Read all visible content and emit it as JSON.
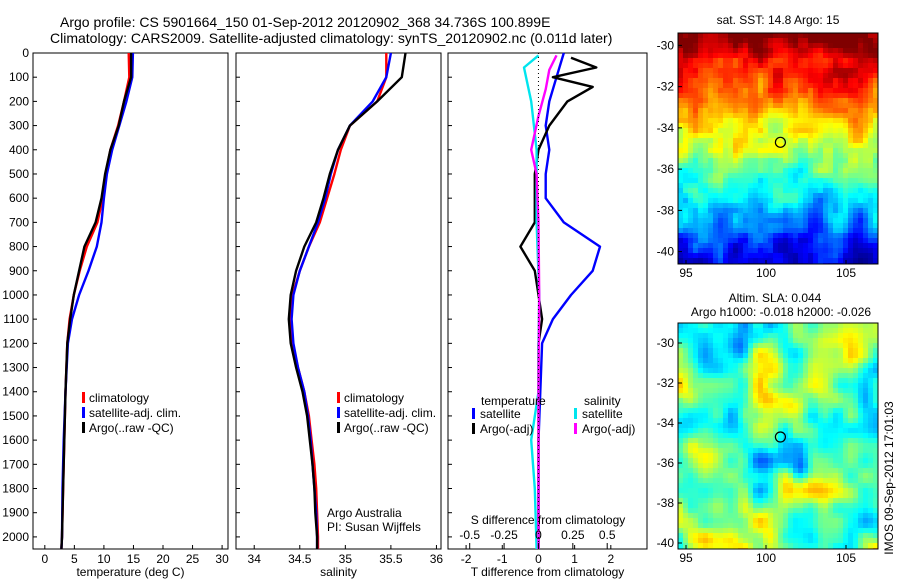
{
  "header": {
    "line1": "Argo profile: CS 5901664_150 01-Sep-2012 20120902_368 34.736S 100.899E",
    "line2": "Climatology: CARS2009. Satellite-adjusted climatology: synTS_20120902.nc (0.011d later)"
  },
  "colors": {
    "climatology": "#ff0000",
    "satellite": "#0000ff",
    "argo": "#000000",
    "satellite_s": "#00e5ee",
    "argo_s": "#ff00ff"
  },
  "chart_data": [
    {
      "type": "line",
      "id": "temperature",
      "xlabel": "temperature (deg C)",
      "xlim": [
        -2,
        31
      ],
      "xticks": [
        0,
        5,
        10,
        15,
        20,
        25,
        30
      ],
      "ylim": [
        2050,
        0
      ],
      "yticks": [
        0,
        100,
        200,
        300,
        400,
        500,
        600,
        700,
        800,
        900,
        1000,
        1100,
        1200,
        1300,
        1400,
        1500,
        1600,
        1700,
        1800,
        1900,
        2000
      ],
      "legend": [
        "climatology",
        "satellite-adj. clim.",
        "Argo(..raw -QC)"
      ],
      "series": [
        {
          "name": "climatology",
          "color": "#ff0000",
          "points": [
            [
              14.2,
              0
            ],
            [
              14.3,
              100
            ],
            [
              13.4,
              200
            ],
            [
              12.4,
              300
            ],
            [
              11.1,
              400
            ],
            [
              10.3,
              500
            ],
            [
              9.8,
              600
            ],
            [
              8.9,
              700
            ],
            [
              7.1,
              800
            ],
            [
              5.9,
              900
            ],
            [
              4.9,
              1000
            ],
            [
              4.2,
              1100
            ],
            [
              3.8,
              1200
            ],
            [
              3.5,
              1400
            ],
            [
              3.3,
              1600
            ],
            [
              3.1,
              1800
            ],
            [
              2.9,
              2000
            ],
            [
              2.8,
              2050
            ]
          ]
        },
        {
          "name": "satellite-adj. clim.",
          "color": "#0000ff",
          "points": [
            [
              14.9,
              0
            ],
            [
              14.8,
              100
            ],
            [
              13.8,
              200
            ],
            [
              12.6,
              300
            ],
            [
              11.4,
              400
            ],
            [
              10.5,
              500
            ],
            [
              10.0,
              600
            ],
            [
              9.6,
              700
            ],
            [
              8.8,
              800
            ],
            [
              7.4,
              900
            ],
            [
              5.8,
              1000
            ],
            [
              4.6,
              1100
            ],
            [
              3.9,
              1200
            ],
            [
              3.5,
              1400
            ],
            [
              3.2,
              1600
            ],
            [
              3.0,
              1800
            ],
            [
              2.9,
              2000
            ],
            [
              2.8,
              2050
            ]
          ]
        },
        {
          "name": "Argo(..raw -QC)",
          "color": "#000000",
          "points": [
            [
              14.6,
              0
            ],
            [
              14.6,
              100
            ],
            [
              13.4,
              200
            ],
            [
              12.5,
              300
            ],
            [
              11.1,
              400
            ],
            [
              10.2,
              500
            ],
            [
              9.6,
              600
            ],
            [
              8.6,
              700
            ],
            [
              6.7,
              800
            ],
            [
              5.8,
              900
            ],
            [
              4.9,
              1000
            ],
            [
              4.3,
              1100
            ],
            [
              3.8,
              1200
            ],
            [
              3.5,
              1400
            ],
            [
              3.3,
              1600
            ],
            [
              3.1,
              1800
            ],
            [
              2.9,
              2000
            ],
            [
              2.8,
              2050
            ]
          ]
        }
      ]
    },
    {
      "type": "line",
      "id": "salinity",
      "xlabel": "salinity",
      "xlim": [
        33.8,
        36.05
      ],
      "xticks": [
        34,
        34.5,
        35,
        35.5,
        36
      ],
      "ylim": [
        2050,
        0
      ],
      "legend": [
        "climatology",
        "satellite-adj. clim.",
        "Argo(..raw -QC)"
      ],
      "annotation": [
        "Argo Australia",
        "PI: Susan Wijffels"
      ],
      "series": [
        {
          "name": "climatology",
          "color": "#ff0000",
          "points": [
            [
              35.45,
              0
            ],
            [
              35.45,
              100
            ],
            [
              35.35,
              200
            ],
            [
              35.05,
              300
            ],
            [
              34.95,
              400
            ],
            [
              34.88,
              500
            ],
            [
              34.8,
              600
            ],
            [
              34.72,
              700
            ],
            [
              34.6,
              800
            ],
            [
              34.5,
              900
            ],
            [
              34.42,
              1000
            ],
            [
              34.4,
              1100
            ],
            [
              34.42,
              1200
            ],
            [
              34.48,
              1300
            ],
            [
              34.55,
              1400
            ],
            [
              34.6,
              1500
            ],
            [
              34.63,
              1600
            ],
            [
              34.66,
              1700
            ],
            [
              34.68,
              1800
            ],
            [
              34.69,
              1900
            ],
            [
              34.7,
              2000
            ],
            [
              34.7,
              2050
            ]
          ]
        },
        {
          "name": "satellite-adj. clim.",
          "color": "#0000ff",
          "points": [
            [
              35.5,
              0
            ],
            [
              35.45,
              100
            ],
            [
              35.3,
              200
            ],
            [
              35.05,
              300
            ],
            [
              34.92,
              400
            ],
            [
              34.84,
              500
            ],
            [
              34.78,
              600
            ],
            [
              34.7,
              700
            ],
            [
              34.6,
              800
            ],
            [
              34.5,
              900
            ],
            [
              34.43,
              1000
            ],
            [
              34.41,
              1100
            ],
            [
              34.43,
              1200
            ],
            [
              34.48,
              1300
            ],
            [
              34.55,
              1400
            ],
            [
              34.59,
              1500
            ],
            [
              34.62,
              1600
            ],
            [
              34.64,
              1700
            ],
            [
              34.66,
              1800
            ],
            [
              34.68,
              1900
            ],
            [
              34.69,
              2000
            ],
            [
              34.69,
              2050
            ]
          ]
        },
        {
          "name": "Argo(..raw -QC)",
          "color": "#000000",
          "points": [
            [
              35.66,
              0
            ],
            [
              35.62,
              100
            ],
            [
              35.35,
              200
            ],
            [
              35.05,
              300
            ],
            [
              34.92,
              400
            ],
            [
              34.83,
              500
            ],
            [
              34.76,
              600
            ],
            [
              34.68,
              700
            ],
            [
              34.55,
              800
            ],
            [
              34.46,
              900
            ],
            [
              34.4,
              1000
            ],
            [
              34.38,
              1100
            ],
            [
              34.4,
              1200
            ],
            [
              34.46,
              1300
            ],
            [
              34.53,
              1400
            ],
            [
              34.58,
              1500
            ],
            [
              34.61,
              1600
            ],
            [
              34.64,
              1700
            ],
            [
              34.66,
              1800
            ],
            [
              34.67,
              1900
            ],
            [
              34.69,
              2000
            ],
            [
              34.69,
              2050
            ]
          ]
        }
      ]
    },
    {
      "type": "line",
      "id": "difference",
      "xlabel": "T difference from climatology",
      "xlabel2": "S difference from climatology",
      "xlim": [
        -2.5,
        3
      ],
      "xticks": [
        -2,
        -1,
        0,
        1,
        2
      ],
      "sticks": [
        [
          -0.5,
          "-0.5"
        ],
        [
          -0.25,
          "-0.25"
        ],
        [
          0,
          "0"
        ],
        [
          0.25,
          "0.25"
        ],
        [
          0.5,
          "0.5"
        ]
      ],
      "ylim": [
        2050,
        0
      ],
      "legend_headers": [
        "temperature",
        "salinity"
      ],
      "legend": [
        "satellite",
        "Argo(-adj)",
        "satellite",
        "Argo(-adj)"
      ],
      "series": [
        {
          "name": "satellite",
          "group": "temperature",
          "color": "#0000ff",
          "points": [
            [
              0.7,
              0
            ],
            [
              0.5,
              100
            ],
            [
              0.3,
              200
            ],
            [
              0.2,
              300
            ],
            [
              0.3,
              400
            ],
            [
              0.2,
              500
            ],
            [
              0.2,
              600
            ],
            [
              0.7,
              700
            ],
            [
              1.7,
              800
            ],
            [
              1.5,
              900
            ],
            [
              0.9,
              1000
            ],
            [
              0.4,
              1100
            ],
            [
              0.1,
              1200
            ],
            [
              0.05,
              1400
            ],
            [
              0.0,
              1600
            ],
            [
              0.0,
              1800
            ],
            [
              0.0,
              2050
            ]
          ]
        },
        {
          "name": "Argo(-adj)",
          "group": "temperature",
          "color": "#000000",
          "points": [
            [
              0.9,
              20
            ],
            [
              1.6,
              60
            ],
            [
              0.4,
              100
            ],
            [
              1.5,
              140
            ],
            [
              0.8,
              200
            ],
            [
              0.3,
              300
            ],
            [
              0.0,
              400
            ],
            [
              -0.1,
              500
            ],
            [
              -0.1,
              600
            ],
            [
              -0.1,
              700
            ],
            [
              -0.5,
              800
            ],
            [
              -0.1,
              900
            ],
            [
              0.0,
              1000
            ],
            [
              0.1,
              1100
            ],
            [
              0.0,
              1200
            ],
            [
              0.0,
              1400
            ],
            [
              0.0,
              1600
            ],
            [
              0.0,
              1800
            ],
            [
              0.0,
              2050
            ]
          ]
        },
        {
          "name": "satellite",
          "group": "salinity",
          "color": "#00e5ee",
          "points": [
            [
              0.0,
              10
            ],
            [
              -0.4,
              60
            ],
            [
              -0.2,
              200
            ],
            [
              -0.05,
              400
            ],
            [
              -0.05,
              700
            ],
            [
              0.02,
              1000
            ],
            [
              0.0,
              1200
            ],
            [
              0.0,
              1400
            ],
            [
              -0.2,
              1600
            ],
            [
              -0.1,
              1800
            ],
            [
              -0.05,
              2050
            ]
          ]
        },
        {
          "name": "Argo(-adj)",
          "group": "salinity",
          "color": "#ff00ff",
          "points": [
            [
              0.5,
              10
            ],
            [
              0.3,
              70
            ],
            [
              0.2,
              150
            ],
            [
              0.0,
              260
            ],
            [
              -0.2,
              400
            ],
            [
              -0.05,
              500
            ],
            [
              0.0,
              700
            ],
            [
              0.02,
              1000
            ],
            [
              0.0,
              1400
            ],
            [
              0.0,
              1700
            ],
            [
              0.0,
              2050
            ]
          ]
        }
      ]
    },
    {
      "type": "heatmap",
      "id": "sst-map",
      "title": "sat. SST: 14.8  Argo: 15",
      "xlim": [
        94.5,
        107
      ],
      "xticks": [
        95,
        100,
        105
      ],
      "ylim": [
        -40.6,
        -29.4
      ],
      "yticks": [
        -30,
        -32,
        -34,
        -36,
        -38,
        -40
      ],
      "marker": [
        100.9,
        -34.7
      ]
    },
    {
      "type": "heatmap",
      "id": "sla-map",
      "title": "Altim. SLA: 0.044",
      "subtitle": "Argo h1000: -0.018 h2000: -0.026",
      "xlim": [
        94.5,
        107
      ],
      "xticks": [
        95,
        100,
        105
      ],
      "ylim": [
        -40.3,
        -29.0
      ],
      "yticks": [
        -30,
        -32,
        -34,
        -36,
        -38,
        -40
      ],
      "marker": [
        100.9,
        -34.7
      ]
    }
  ],
  "footer": "IMOS 09-Sep-2012 17:01:03"
}
